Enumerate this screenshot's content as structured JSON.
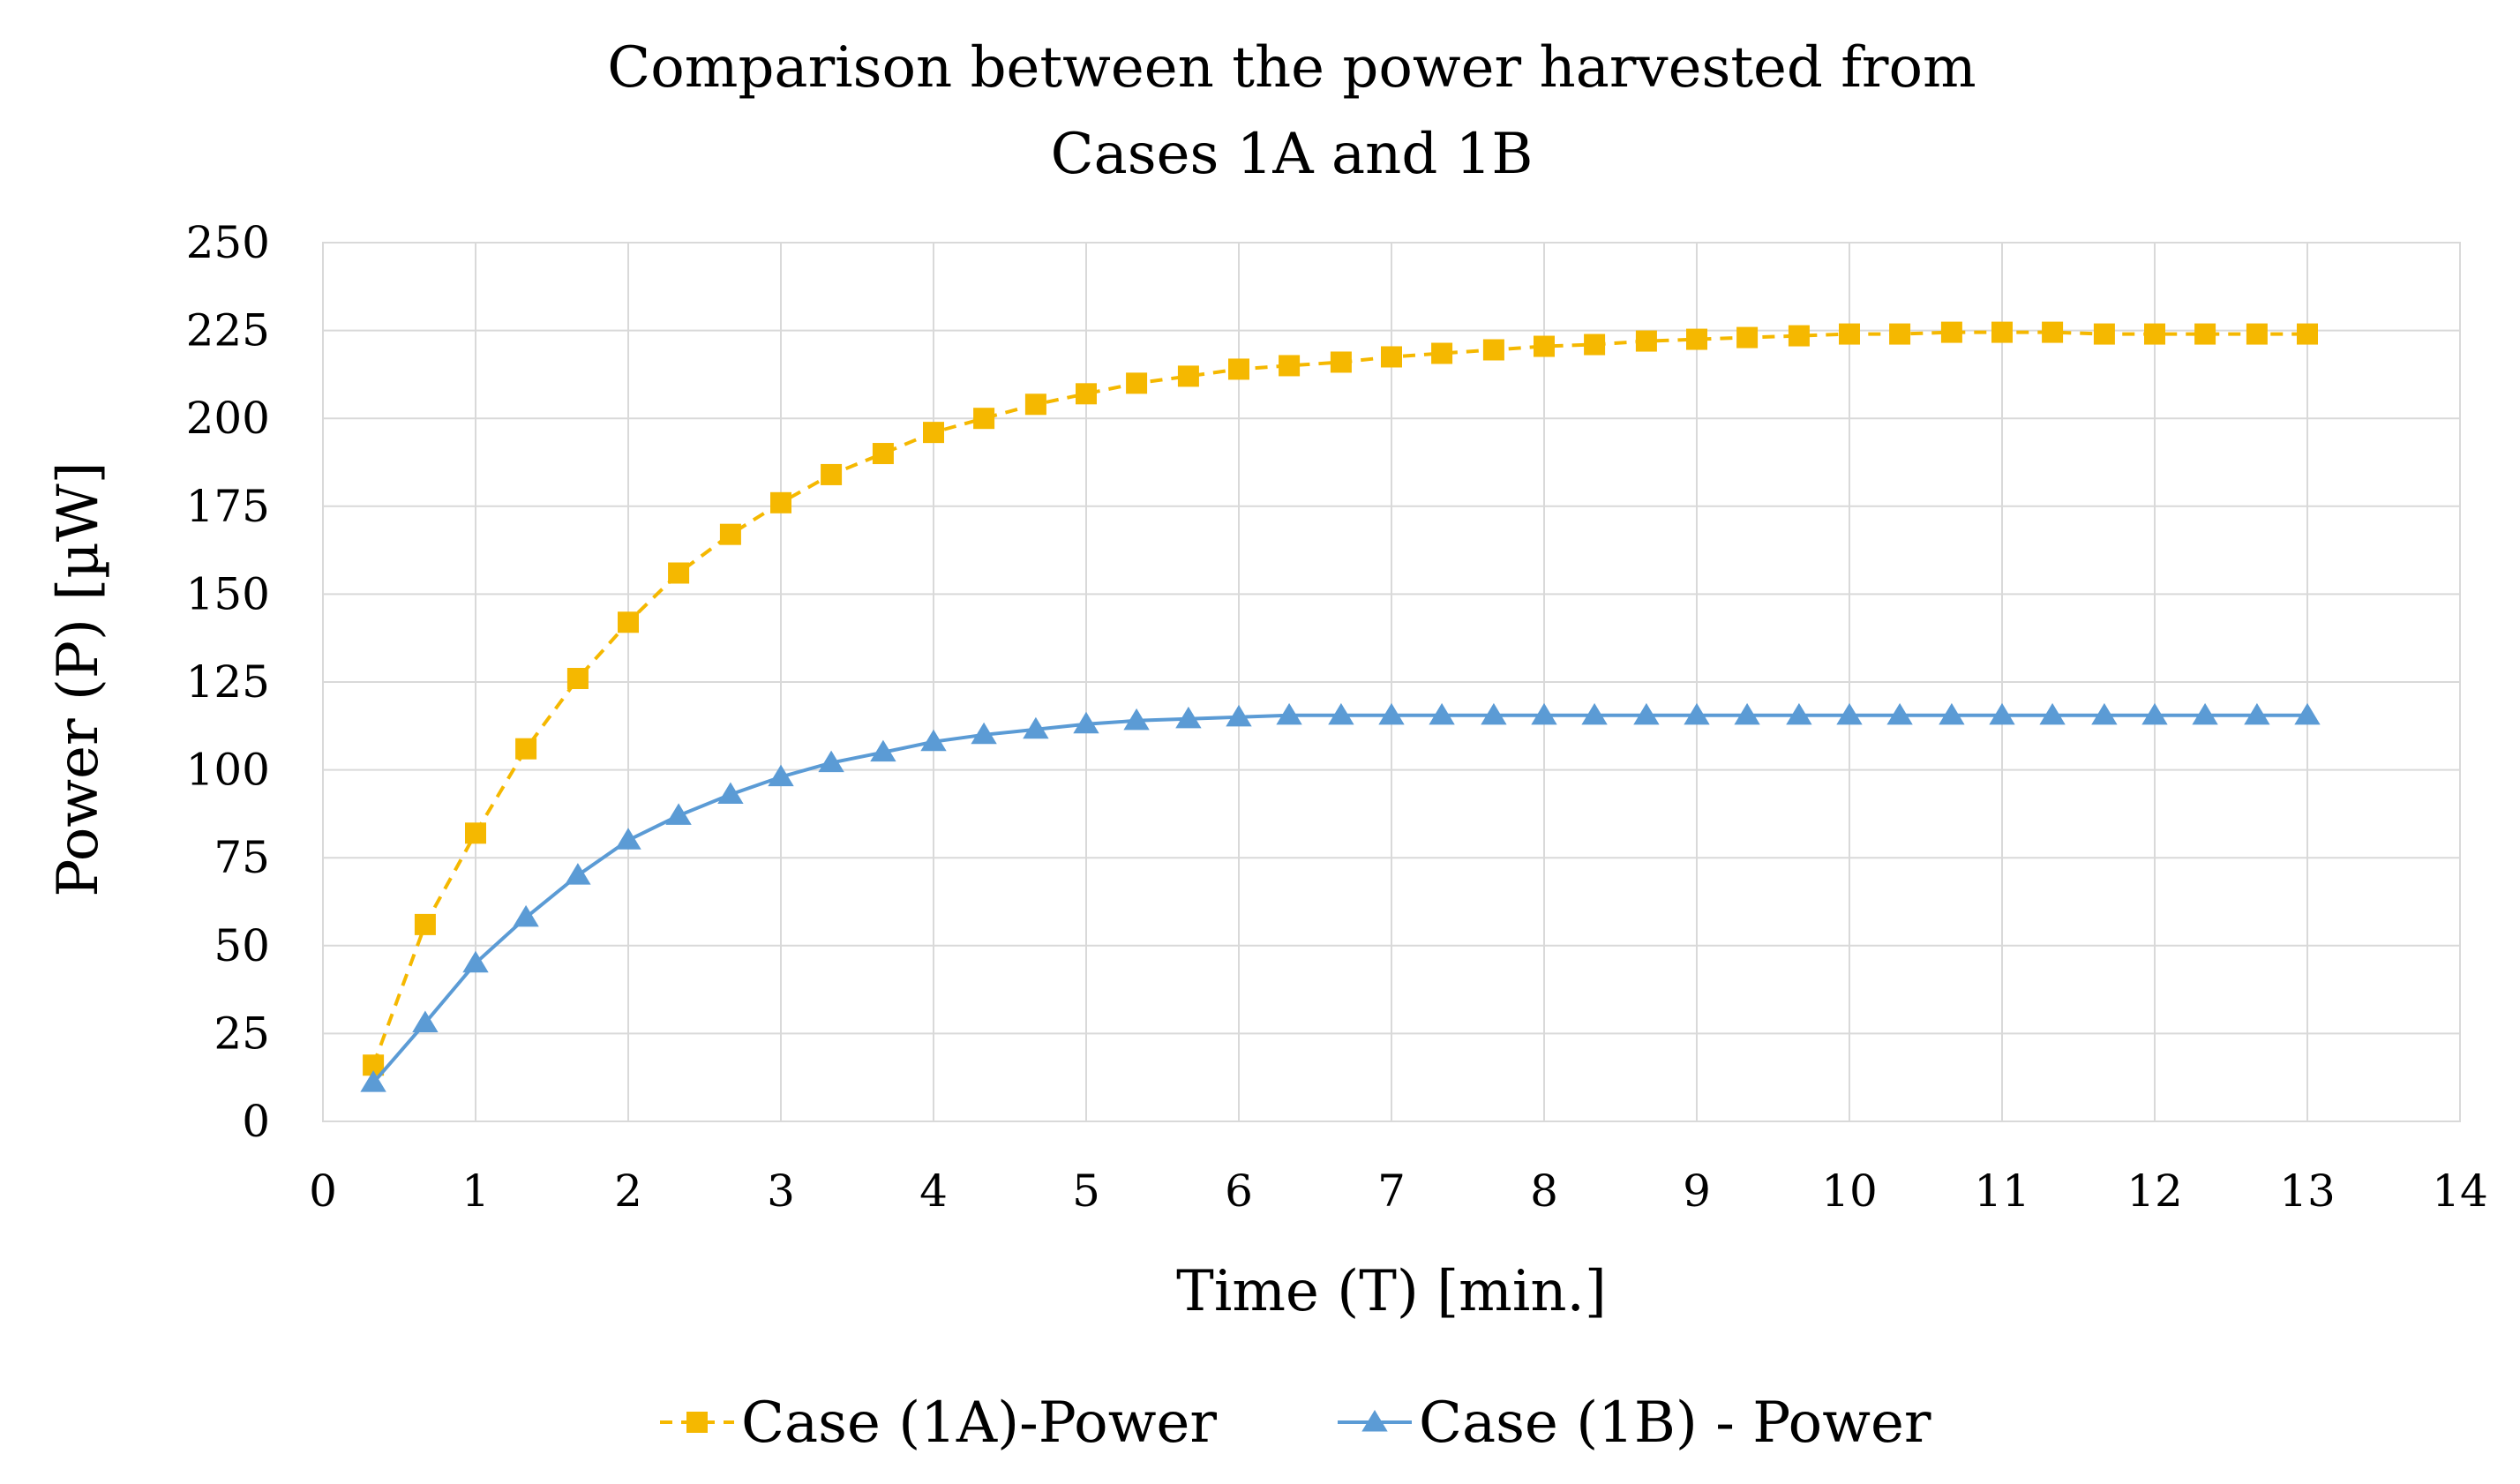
{
  "chart_data": {
    "type": "line",
    "title": [
      "Comparison between the power harvested from",
      "Cases 1A and 1B"
    ],
    "xlabel": "Time (T) [min.]",
    "ylabel": "Power (P)  [µW]",
    "xlim": [
      0,
      14
    ],
    "ylim": [
      0,
      250
    ],
    "xticks": [
      0,
      1,
      2,
      3,
      4,
      5,
      6,
      7,
      8,
      9,
      10,
      11,
      12,
      13,
      14
    ],
    "yticks": [
      0,
      25,
      50,
      75,
      100,
      125,
      150,
      175,
      200,
      225,
      250
    ],
    "grid": true,
    "legend_position": "bottom",
    "x": [
      0.33,
      0.67,
      1.0,
      1.33,
      1.67,
      2.0,
      2.33,
      2.67,
      3.0,
      3.33,
      3.67,
      4.0,
      4.33,
      4.67,
      5.0,
      5.33,
      5.67,
      6.0,
      6.33,
      6.67,
      7.0,
      7.33,
      7.67,
      8.0,
      8.33,
      8.67,
      9.0,
      9.33,
      9.67,
      10.0,
      10.33,
      10.67,
      11.0,
      11.33,
      11.67,
      12.0,
      12.33,
      12.67,
      13.0
    ],
    "series": [
      {
        "name": "Case (1A)-Power",
        "color": "#f5b800",
        "line_style": "dashed",
        "marker": "square",
        "values": [
          16,
          56,
          82,
          106,
          126,
          142,
          156,
          167,
          176,
          184,
          190,
          196,
          200,
          204,
          207,
          210,
          212,
          214,
          215,
          216,
          217.5,
          218.5,
          219.5,
          220.5,
          221,
          222,
          222.5,
          223,
          223.5,
          224,
          224,
          224.5,
          224.5,
          224.5,
          224,
          224,
          224,
          224,
          224
        ]
      },
      {
        "name": "Case (1B) - Power",
        "color": "#5b9bd5",
        "line_style": "solid",
        "marker": "triangle",
        "values": [
          11,
          28,
          45,
          58,
          70,
          80,
          87,
          93,
          98,
          102,
          105,
          108,
          110,
          111.5,
          113,
          114,
          114.5,
          115,
          115.5,
          115.5,
          115.5,
          115.5,
          115.5,
          115.5,
          115.5,
          115.5,
          115.5,
          115.5,
          115.5,
          115.5,
          115.5,
          115.5,
          115.5,
          115.5,
          115.5,
          115.5,
          115.5,
          115.5,
          115.5
        ]
      }
    ]
  }
}
